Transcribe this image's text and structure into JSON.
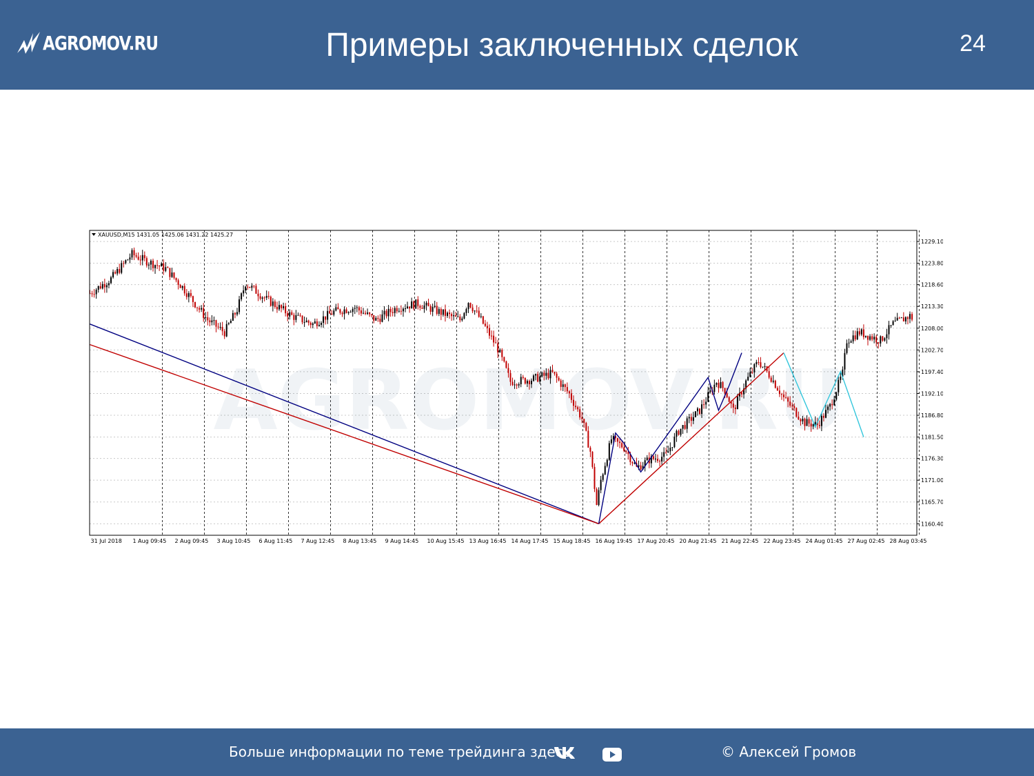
{
  "header": {
    "logo_text": "AGROMOV.RU",
    "title": "Примеры заключенных сделок",
    "slide_number": "24",
    "background": "#3b6292"
  },
  "footer": {
    "info_text": "Больше информации по теме трейдинга здесь",
    "vk_icon": "vk-icon",
    "youtube_icon": "youtube-icon",
    "copyright": "© Алексей Громов"
  },
  "chart_data": {
    "type": "candlestick",
    "symbol_label": "XAUUSD,M15 1431.05 1425.06 1431.22 1425.27",
    "watermark": "AGROMOV.RU",
    "grid": true,
    "ylim": [
      1157.6,
      1231.8
    ],
    "y_ticks": [
      "1229.10",
      "1223.80",
      "1218.60",
      "1213.30",
      "1208.00",
      "1202.70",
      "1197.40",
      "1192.10",
      "1186.80",
      "1181.50",
      "1176.30",
      "1171.00",
      "1165.70",
      "1160.40"
    ],
    "x_ticks": [
      "31 Jul 2018",
      "1 Aug 09:45",
      "2 Aug 09:45",
      "3 Aug 10:45",
      "6 Aug 11:45",
      "7 Aug 12:45",
      "8 Aug 13:45",
      "9 Aug 14:45",
      "10 Aug 15:45",
      "13 Aug 16:45",
      "14 Aug 17:45",
      "15 Aug 18:45",
      "16 Aug 19:45",
      "17 Aug 20:45",
      "20 Aug 21:45",
      "21 Aug 22:45",
      "22 Aug 23:45",
      "24 Aug 01:45",
      "27 Aug 02:45",
      "28 Aug 03:45"
    ],
    "price_path": [
      [
        0.0,
        1216.5
      ],
      [
        0.5,
        1220.0
      ],
      [
        1.0,
        1226.0
      ],
      [
        1.3,
        1224.5
      ],
      [
        1.8,
        1222.5
      ],
      [
        2.2,
        1218.0
      ],
      [
        2.8,
        1210.0
      ],
      [
        3.2,
        1207.0
      ],
      [
        3.5,
        1212.5
      ],
      [
        3.7,
        1219.0
      ],
      [
        4.2,
        1215.0
      ],
      [
        4.8,
        1211.0
      ],
      [
        5.3,
        1209.0
      ],
      [
        5.8,
        1212.0
      ],
      [
        6.3,
        1213.0
      ],
      [
        6.8,
        1210.0
      ],
      [
        7.3,
        1213.0
      ],
      [
        7.8,
        1214.0
      ],
      [
        8.3,
        1212.0
      ],
      [
        8.8,
        1210.0
      ],
      [
        9.0,
        1214.5
      ],
      [
        9.3,
        1210.0
      ],
      [
        9.7,
        1203.0
      ],
      [
        10.0,
        1195.0
      ],
      [
        10.5,
        1195.5
      ],
      [
        11.0,
        1197.0
      ],
      [
        11.4,
        1192.0
      ],
      [
        11.7,
        1186.0
      ],
      [
        11.9,
        1178.0
      ],
      [
        12.05,
        1165.0
      ],
      [
        12.15,
        1171.0
      ],
      [
        12.4,
        1181.0
      ],
      [
        12.7,
        1179.0
      ],
      [
        13.0,
        1174.0
      ],
      [
        13.3,
        1176.0
      ],
      [
        13.7,
        1177.0
      ],
      [
        14.0,
        1183.0
      ],
      [
        14.5,
        1188.0
      ],
      [
        14.9,
        1195.0
      ],
      [
        15.1,
        1193.0
      ],
      [
        15.3,
        1188.0
      ],
      [
        15.6,
        1195.0
      ],
      [
        15.9,
        1200.0
      ],
      [
        16.2,
        1196.0
      ],
      [
        16.5,
        1191.0
      ],
      [
        17.0,
        1185.0
      ],
      [
        17.3,
        1184.5
      ],
      [
        17.6,
        1189.0
      ],
      [
        17.9,
        1197.0
      ],
      [
        18.0,
        1205.0
      ],
      [
        18.3,
        1207.0
      ],
      [
        18.8,
        1205.0
      ],
      [
        19.1,
        1209.0
      ],
      [
        19.5,
        1211.0
      ],
      [
        19.6,
        1210.0
      ]
    ],
    "trend_lines": [
      {
        "color": "#000080",
        "points": [
          [
            0.0,
            1209.0
          ],
          [
            12.1,
            1160.4
          ]
        ]
      },
      {
        "color": "#c00000",
        "points": [
          [
            0.0,
            1204.0
          ],
          [
            12.1,
            1160.4
          ]
        ]
      },
      {
        "color": "#c00000",
        "points": [
          [
            12.1,
            1160.4
          ],
          [
            16.5,
            1202.0
          ]
        ]
      },
      {
        "color": "#000080",
        "points": [
          [
            12.1,
            1160.4
          ],
          [
            12.5,
            1182.5
          ],
          [
            12.7,
            1180.0
          ],
          [
            13.1,
            1173.0
          ],
          [
            14.7,
            1196.0
          ],
          [
            14.95,
            1188.0
          ],
          [
            15.2,
            1194.0
          ],
          [
            15.5,
            1202.0
          ]
        ]
      },
      {
        "color": "#33c6dc",
        "points": [
          [
            16.5,
            1202.0
          ],
          [
            17.25,
            1184.0
          ],
          [
            17.85,
            1197.5
          ],
          [
            18.4,
            1181.5
          ]
        ]
      }
    ]
  }
}
